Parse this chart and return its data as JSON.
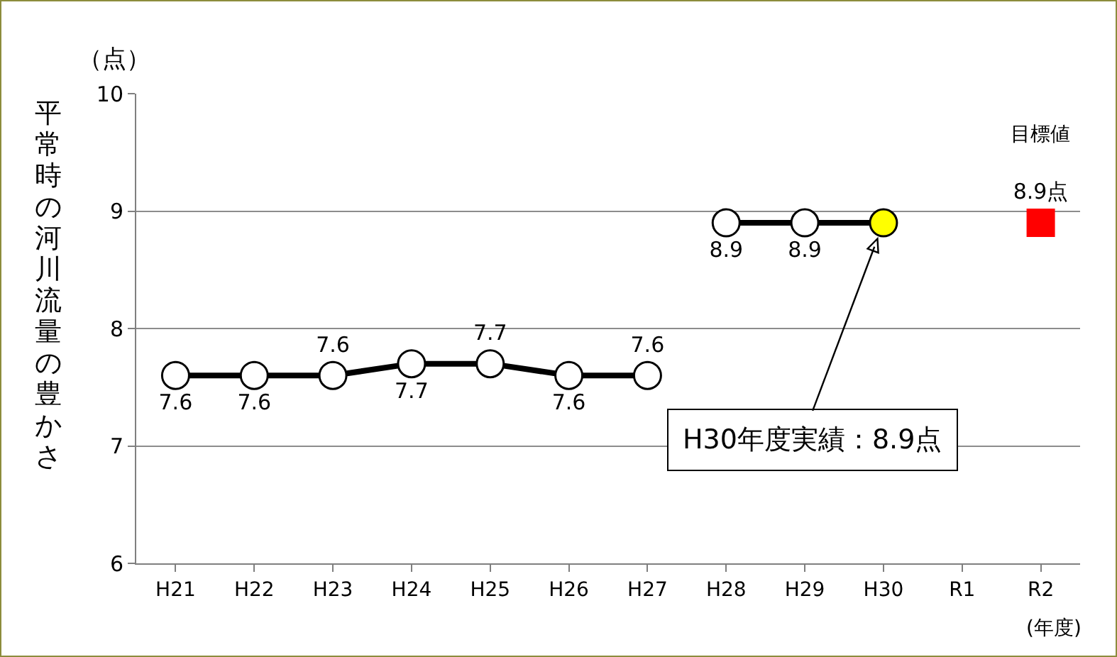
{
  "chart_data": {
    "type": "line",
    "ylabel": "平常時の河川流量の豊かさ",
    "categories": [
      "H21",
      "H22",
      "H23",
      "H24",
      "H25",
      "H26",
      "H27",
      "H28",
      "H29",
      "H30",
      "R1",
      "R2"
    ],
    "series": [
      {
        "color": "#000000",
        "colors": [
          "#ffffff",
          "#ffffff",
          "#ffffff",
          "#ffffff",
          "#ffffff",
          "#ffffff",
          "#ffffff",
          null,
          null,
          null,
          null,
          null
        ],
        "values": [
          7.6,
          7.6,
          7.6,
          7.7,
          7.7,
          7.6,
          7.6,
          null,
          null,
          null,
          null,
          null
        ],
        "value_labels": [
          "7.6",
          "7.6",
          "7.6",
          "7.7",
          "7.7",
          "7.6",
          "7.6",
          null,
          null,
          null,
          null,
          null
        ]
      },
      {
        "color": "#000000",
        "colors": [
          null,
          null,
          null,
          null,
          null,
          null,
          null,
          "#ffffff",
          "#ffffff",
          "#ffff00",
          null,
          null
        ],
        "values": [
          null,
          null,
          null,
          null,
          null,
          null,
          null,
          8.9,
          8.9,
          8.9,
          null,
          null
        ],
        "value_labels": [
          null,
          null,
          null,
          null,
          null,
          null,
          null,
          "8.9",
          "8.9",
          null,
          null,
          null
        ]
      },
      {
        "type": "scatter",
        "name": "目標値",
        "marker": "square",
        "color": "#ff0000",
        "values": [
          null,
          null,
          null,
          null,
          null,
          null,
          null,
          null,
          null,
          null,
          null,
          8.9
        ],
        "value_labels": [
          null,
          null,
          null,
          null,
          null,
          null,
          null,
          null,
          null,
          null,
          null,
          "8.9点"
        ]
      }
    ],
    "ylim": [
      6,
      10
    ],
    "yticks": [
      6,
      7,
      8,
      9,
      10
    ],
    "grid": "y",
    "marker": "circle",
    "line_style": "solid",
    "annotations": [
      "（点）",
      "(年度)",
      "H30年度実績：8.9点"
    ]
  }
}
